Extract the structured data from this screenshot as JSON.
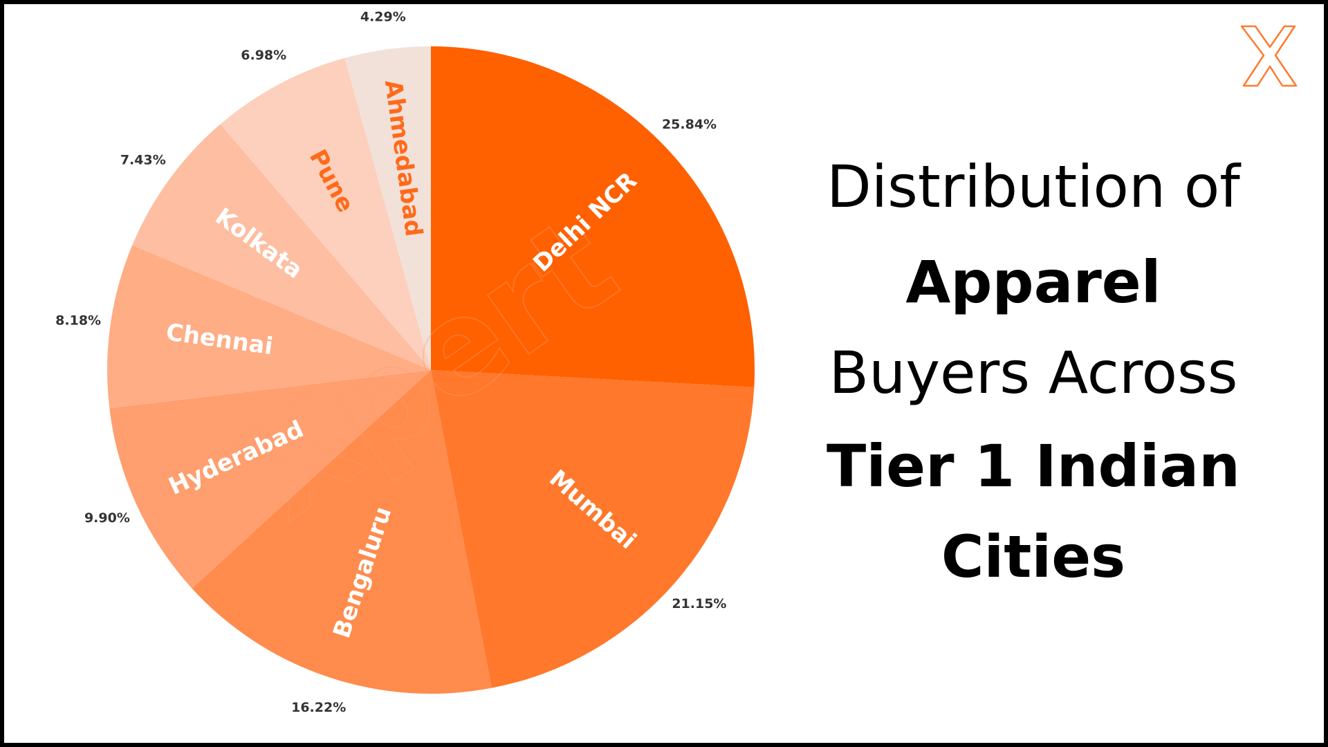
{
  "chart_data": {
    "type": "pie",
    "title": [
      "Distribution of",
      "Apparel",
      "Buyers Across",
      "Tier 1 Indian",
      "Cities"
    ],
    "title_bold": [
      false,
      true,
      false,
      true,
      true
    ],
    "watermark": "Xpert",
    "categories": [
      "Delhi NCR",
      "Mumbai",
      "Bengaluru",
      "Hyderabad",
      "Chennai",
      "Kolkata",
      "Pune",
      "Ahmedabad"
    ],
    "values": [
      25.84,
      21.15,
      16.22,
      9.9,
      8.18,
      7.43,
      6.98,
      4.29
    ],
    "value_labels": [
      "25.84%",
      "21.15%",
      "16.22%",
      "9.90%",
      "8.18%",
      "7.43%",
      "6.98%",
      "4.29%"
    ],
    "colors": [
      "#ff6000",
      "#ff782b",
      "#ff8b4d",
      "#ff9e6e",
      "#ffad85",
      "#fdbea1",
      "#fcd0bc",
      "#f2e1d9"
    ],
    "label_colors": [
      "#ffffff",
      "#ffffff",
      "#ffffff",
      "#ffffff",
      "#ffffff",
      "#ffffff",
      "#ff6a1a",
      "#ff6a1a"
    ]
  }
}
